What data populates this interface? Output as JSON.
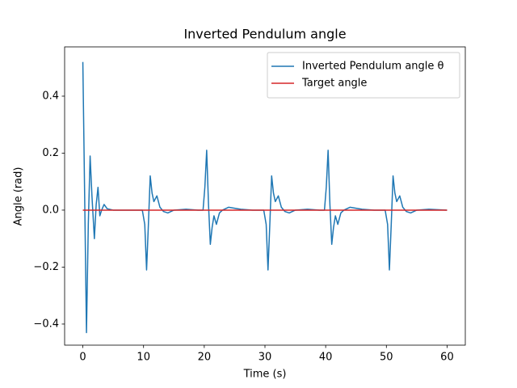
{
  "chart_data": {
    "type": "line",
    "title": "Inverted Pendulum angle",
    "xlabel": "Time (s)",
    "ylabel": "Angle (rad)",
    "xlim": [
      -3,
      63
    ],
    "ylim": [
      -0.474,
      0.573
    ],
    "xticks": [
      0,
      10,
      20,
      30,
      40,
      50,
      60
    ],
    "yticks": [
      {
        "value": -0.4,
        "label": "−0.4"
      },
      {
        "value": -0.2,
        "label": "−0.2"
      },
      {
        "value": 0,
        "label": "0.0"
      },
      0.2,
      0.4
    ],
    "legend": "upper right",
    "series": [
      {
        "name": "Inverted Pendulum angle θ",
        "color": "#1f77b4",
        "x": [
          0,
          0.3,
          0.6,
          0.9,
          1.2,
          1.5,
          1.9,
          2.2,
          2.5,
          2.8,
          3.1,
          3.5,
          4.0,
          5,
          7,
          9,
          9.8,
          10.2,
          10.5,
          10.8,
          11.1,
          11.4,
          11.7,
          12.2,
          12.7,
          13.3,
          14,
          15,
          17,
          19,
          19.8,
          20.1,
          20.4,
          20.7,
          21.0,
          21.3,
          21.6,
          22.0,
          22.5,
          23,
          24,
          26,
          28,
          29.8,
          30.2,
          30.5,
          30.8,
          31.1,
          31.4,
          31.7,
          32.2,
          32.7,
          33.3,
          34,
          35,
          37,
          39,
          39.8,
          40.1,
          40.4,
          40.7,
          41.0,
          41.3,
          41.6,
          42.0,
          42.5,
          43,
          44,
          46,
          48,
          49.8,
          50.2,
          50.5,
          50.8,
          51.1,
          51.4,
          51.7,
          52.2,
          52.7,
          53.3,
          54,
          55,
          57,
          60
        ],
        "values": [
          0.52,
          0.05,
          -0.43,
          -0.05,
          0.19,
          0.05,
          -0.1,
          0.02,
          0.08,
          -0.02,
          0.0,
          0.02,
          0.005,
          0.0,
          0.0,
          0.0,
          0.0,
          -0.05,
          -0.21,
          -0.05,
          0.12,
          0.06,
          0.03,
          0.05,
          0.01,
          -0.005,
          -0.01,
          0.0,
          0.003,
          0.0,
          0.0,
          0.08,
          0.21,
          0.02,
          -0.12,
          -0.06,
          -0.02,
          -0.05,
          -0.01,
          0.0,
          0.01,
          0.003,
          0.0,
          0.0,
          -0.05,
          -0.21,
          -0.05,
          0.12,
          0.06,
          0.03,
          0.05,
          0.01,
          -0.005,
          -0.01,
          0.0,
          0.003,
          0.0,
          0.0,
          0.08,
          0.21,
          0.02,
          -0.12,
          -0.06,
          -0.02,
          -0.05,
          -0.01,
          0.0,
          0.01,
          0.003,
          0.0,
          0.0,
          -0.05,
          -0.21,
          -0.05,
          0.12,
          0.06,
          0.03,
          0.05,
          0.01,
          -0.005,
          -0.01,
          0.0,
          0.003,
          0.0
        ]
      },
      {
        "name": "Target angle",
        "color": "#d62728",
        "x": [
          0,
          60
        ],
        "values": [
          0,
          0
        ]
      }
    ]
  }
}
